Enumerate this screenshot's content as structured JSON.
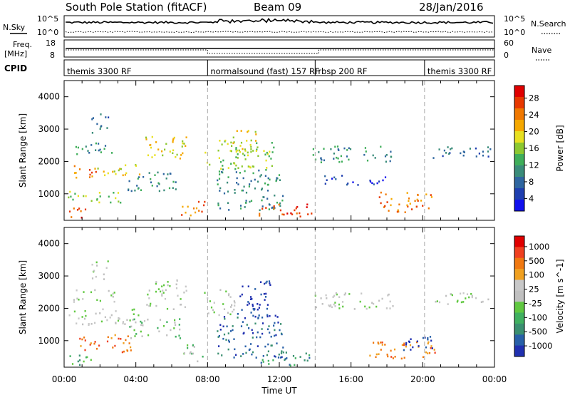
{
  "header": {
    "station": "South Pole Station (fitACF)",
    "beam": "Beam 09",
    "date": "28/Jan/2016"
  },
  "top_panels": {
    "sky": {
      "left_label": "N.Sky",
      "left_ticks": [
        "10^5",
        "10^0"
      ],
      "right_label": "N.Search",
      "right_ticks": [
        "10^5",
        "10^0"
      ]
    },
    "freq": {
      "left_label_1": "Freq.",
      "left_label_2": "[MHz]",
      "left_ticks": [
        "18",
        "8"
      ],
      "right_label": "Nave",
      "right_ticks": [
        "60",
        "0"
      ]
    },
    "cpid": {
      "label": "CPID",
      "segments": [
        {
          "label": "themis 3300 RF",
          "start_hour": 0
        },
        {
          "label": "normalsound (fast) 157 RF",
          "start_hour": 8
        },
        {
          "label": "rbsp 200 RF",
          "start_hour": 14
        },
        {
          "label": "themis 3300 RF",
          "start_hour": 20.1
        }
      ]
    }
  },
  "colorbars": {
    "power": {
      "label": "Power [dB]",
      "ticks": [
        "28",
        "24",
        "20",
        "16",
        "12",
        "8",
        "4"
      ],
      "colors": [
        "#1010ee",
        "#1f3fb0",
        "#2f66a0",
        "#3a8c7a",
        "#3fae5a",
        "#8cc830",
        "#e8e020",
        "#f5a800",
        "#f07800",
        "#e83800",
        "#e00000"
      ]
    },
    "velocity": {
      "label": "Velocity [m s^-1]",
      "ticks": [
        "1000",
        "500",
        "100",
        "25",
        "-25",
        "-100",
        "-500",
        "-1000"
      ],
      "colors": [
        "#2030b0",
        "#2860a8",
        "#3a8f70",
        "#40b060",
        "#60c840",
        "#c0c0c0",
        "#c8c8c8",
        "#f0a020",
        "#f07810",
        "#f04020",
        "#e00000"
      ]
    }
  },
  "chart_data": [
    {
      "type": "heatmap",
      "title": "Power",
      "ylabel": "Slant Range [km]",
      "xlabel": "Time UT",
      "ylim": [
        180,
        4500
      ],
      "xlim": [
        0,
        24
      ],
      "yticks": [
        "1000",
        "2000",
        "3000",
        "4000"
      ],
      "xticks": [
        "00:00",
        "04:00",
        "08:00",
        "12:00",
        "16:00",
        "20:00",
        "00:00"
      ],
      "colorbar": "Power [dB]",
      "bands": [
        {
          "t0": 0.2,
          "t1": 1.8,
          "r0": 1500,
          "r1": 1900,
          "level": 8
        },
        {
          "t0": 1.8,
          "t1": 4.5,
          "r0": 1600,
          "r1": 1950,
          "level": 6
        },
        {
          "t0": 4.5,
          "t1": 6.8,
          "r0": 2000,
          "r1": 2800,
          "level": 6
        },
        {
          "t0": 0.5,
          "t1": 2.8,
          "r0": 2200,
          "r1": 2600,
          "level": 3
        },
        {
          "t0": 0.2,
          "t1": 3.5,
          "r0": 750,
          "r1": 1100,
          "level": 5
        },
        {
          "t0": 3.5,
          "t1": 6.5,
          "r0": 1100,
          "r1": 1700,
          "level": 3
        },
        {
          "t0": 0,
          "t1": 1.2,
          "r0": 250,
          "r1": 600,
          "level": 9
        },
        {
          "t0": 6.5,
          "t1": 7.8,
          "r0": 350,
          "r1": 900,
          "level": 8
        },
        {
          "t0": 7.8,
          "t1": 11.8,
          "r0": 1800,
          "r1": 2700,
          "level": 5
        },
        {
          "t0": 9.2,
          "t1": 10.8,
          "r0": 2300,
          "r1": 3000,
          "level": 6
        },
        {
          "t0": 8.5,
          "t1": 12.2,
          "r0": 500,
          "r1": 1800,
          "level": 3
        },
        {
          "t0": 10.8,
          "t1": 13.8,
          "r0": 280,
          "r1": 700,
          "level": 9
        },
        {
          "t0": 13.8,
          "t1": 18.4,
          "r0": 2000,
          "r1": 2500,
          "level": 3
        },
        {
          "t0": 14.5,
          "t1": 18,
          "r0": 1300,
          "r1": 1600,
          "level": 1
        },
        {
          "t0": 17.5,
          "t1": 20.5,
          "r0": 450,
          "r1": 1100,
          "level": 8
        },
        {
          "t0": 20.5,
          "t1": 23.8,
          "r0": 2100,
          "r1": 2500,
          "level": 2
        },
        {
          "t0": 1.5,
          "t1": 2.5,
          "r0": 2900,
          "r1": 3500,
          "level": 2
        }
      ]
    },
    {
      "type": "heatmap",
      "title": "Velocity",
      "ylabel": "Slant Range [km]",
      "xlabel": "Time UT",
      "ylim": [
        180,
        4500
      ],
      "xlim": [
        0,
        24
      ],
      "yticks": [
        "1000",
        "2000",
        "3000",
        "4000"
      ],
      "xticks": [
        "00:00",
        "04:00",
        "08:00",
        "12:00",
        "16:00",
        "20:00",
        "00:00"
      ],
      "colorbar": "Velocity [m s^-1]",
      "bands": [
        {
          "t0": 0.2,
          "t1": 4.5,
          "r0": 1500,
          "r1": 2000,
          "level": 5
        },
        {
          "t0": 4.5,
          "t1": 6.8,
          "r0": 2000,
          "r1": 2900,
          "level": 5
        },
        {
          "t0": 0.5,
          "t1": 2.8,
          "r0": 2200,
          "r1": 2600,
          "level": 5
        },
        {
          "t0": 0.8,
          "t1": 3.8,
          "r0": 650,
          "r1": 1200,
          "level": 8
        },
        {
          "t0": 3.5,
          "t1": 6.5,
          "r0": 1100,
          "r1": 1700,
          "level": 4
        },
        {
          "t0": 0,
          "t1": 1.5,
          "r0": 250,
          "r1": 600,
          "level": 3
        },
        {
          "t0": 6.5,
          "t1": 7.8,
          "r0": 350,
          "r1": 900,
          "level": 4
        },
        {
          "t0": 7.8,
          "t1": 9.5,
          "r0": 1800,
          "r1": 2600,
          "level": 5
        },
        {
          "t0": 9.5,
          "t1": 11.5,
          "r0": 1700,
          "r1": 2900,
          "level": 0
        },
        {
          "t0": 8.5,
          "t1": 12.2,
          "r0": 500,
          "r1": 1800,
          "level": 1
        },
        {
          "t0": 10.8,
          "t1": 13.8,
          "r0": 250,
          "r1": 700,
          "level": 2
        },
        {
          "t0": 13.8,
          "t1": 18.4,
          "r0": 2000,
          "r1": 2500,
          "level": 5
        },
        {
          "t0": 17,
          "t1": 20.8,
          "r0": 450,
          "r1": 1000,
          "level": 8
        },
        {
          "t0": 18.5,
          "t1": 20.5,
          "r0": 700,
          "r1": 1200,
          "level": 0
        },
        {
          "t0": 20.5,
          "t1": 23.8,
          "r0": 2100,
          "r1": 2500,
          "level": 5
        },
        {
          "t0": 1.5,
          "t1": 2.5,
          "r0": 2900,
          "r1": 3500,
          "level": 5
        }
      ]
    }
  ]
}
